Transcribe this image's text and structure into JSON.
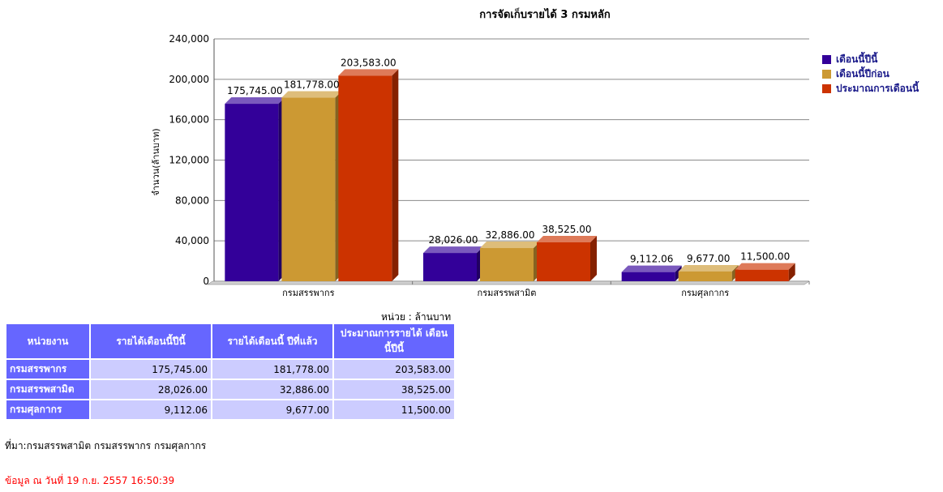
{
  "chart_data": {
    "type": "bar",
    "title": "การจัดเก็บรายได้ 3 กรมหลัก",
    "ylabel": "จำนวน(ล้านบาท)",
    "xlabel": "",
    "categories": [
      "กรมสรรพากร",
      "กรมสรรพสามิต",
      "กรมศุลกากร"
    ],
    "series": [
      {
        "name": "เดือนนี้ปีนี้",
        "values": [
          175745.0,
          28026.0,
          9112.06
        ],
        "labels": [
          "175,745.00",
          "28,026.00",
          "9,112.06"
        ]
      },
      {
        "name": "เดือนนี้ปีก่อน",
        "values": [
          181778.0,
          32886.0,
          9677.0
        ],
        "labels": [
          "181,778.00",
          "32,886.00",
          "9,677.00"
        ]
      },
      {
        "name": "ประมาณการเดือนนี้",
        "values": [
          203583.0,
          38525.0,
          11500.0
        ],
        "labels": [
          "203,583.00",
          "38,525.00",
          "11,500.00"
        ]
      }
    ],
    "ylim": [
      0,
      240000
    ],
    "yticks": [
      0,
      40000,
      80000,
      120000,
      160000,
      200000,
      240000
    ],
    "ytick_labels": [
      "0",
      "40,000",
      "80,000",
      "120,000",
      "160,000",
      "200,000",
      "240,000"
    ],
    "grid": true,
    "legend": "right",
    "colors": [
      "#330099",
      "#cc9933",
      "#cc3300"
    ]
  },
  "unit_label": "หน่วย : ล้านบาท",
  "table": {
    "headers": [
      "หน่วยงาน",
      "รายได้เดือนนี้ปีนี้",
      "รายได้เดือนนี้ ปีที่แล้ว",
      "ประมาณการรายได้ เดือนนี้ปีนี้"
    ],
    "rows": [
      [
        "กรมสรรพากร",
        "175,745.00",
        "181,778.00",
        "203,583.00"
      ],
      [
        "กรมสรรพสามิต",
        "28,026.00",
        "32,886.00",
        "38,525.00"
      ],
      [
        "กรมศุลกากร",
        "9,112.06",
        "9,677.00",
        "11,500.00"
      ]
    ]
  },
  "footer": {
    "source": "ที่มา:กรมสรรพสามิต กรมสรรพากร กรมศุลกากร",
    "updated": "ข้อมูล ณ วันที่ 19 ก.ย. 2557  16:50:39"
  }
}
